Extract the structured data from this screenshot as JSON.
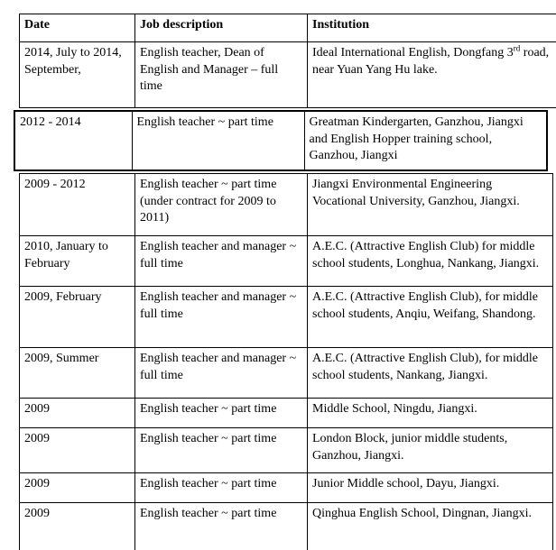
{
  "headers": {
    "date": "Date",
    "job": "Job description",
    "institution": "Institution"
  },
  "first_row": {
    "date": "2014, July to 2014, September,",
    "job": "English teacher, Dean of English and Manager – full time",
    "institution_pre": "Ideal International English, Dongfang 3",
    "institution_sup": "rd",
    "institution_post": " road, near Yuan Yang Hu lake."
  },
  "second_row": {
    "date": "2012 - 2014",
    "job": "English teacher ~ part time",
    "institution": "Greatman Kindergarten, Ganzhou, Jiangxi and English Hopper training school, Ganzhou, Jiangxi"
  },
  "rows": [
    {
      "date": "2009 - 2012",
      "job": "English teacher ~ part time (under contract for 2009 to 2011)",
      "institution": "Jiangxi Environmental Engineering Vocational University, Ganzhou, Jiangxi."
    },
    {
      "date": "2010, January to February",
      "job": "English teacher and manager ~ full time",
      "institution": "A.E.C. (Attractive English Club) for middle school students, Longhua, Nankang, Jiangxi."
    },
    {
      "date": "2009, February",
      "job": "English teacher and manager ~ full time",
      "institution": "A.E.C. (Attractive English Club), for middle school students, Anqiu, Weifang, Shandong."
    },
    {
      "date": "2009, Summer",
      "job": "English teacher and manager ~ full time",
      "institution": "A.E.C. (Attractive English Club), for middle school students, Nankang, Jiangxi."
    },
    {
      "date": "2009",
      "job": "English teacher ~ part time",
      "institution": "Middle School, Ningdu, Jiangxi."
    },
    {
      "date": "2009",
      "job": "English teacher ~ part time",
      "institution": "London Block, junior middle students, Ganzhou, Jiangxi."
    },
    {
      "date": "2009",
      "job": "English teacher ~ part time",
      "institution": "Junior Middle school, Dayu, Jiangxi."
    },
    {
      "date": "2009",
      "job": "English teacher ~ part time",
      "institution": "Qinghua English School, Dingnan, Jiangxi."
    }
  ]
}
